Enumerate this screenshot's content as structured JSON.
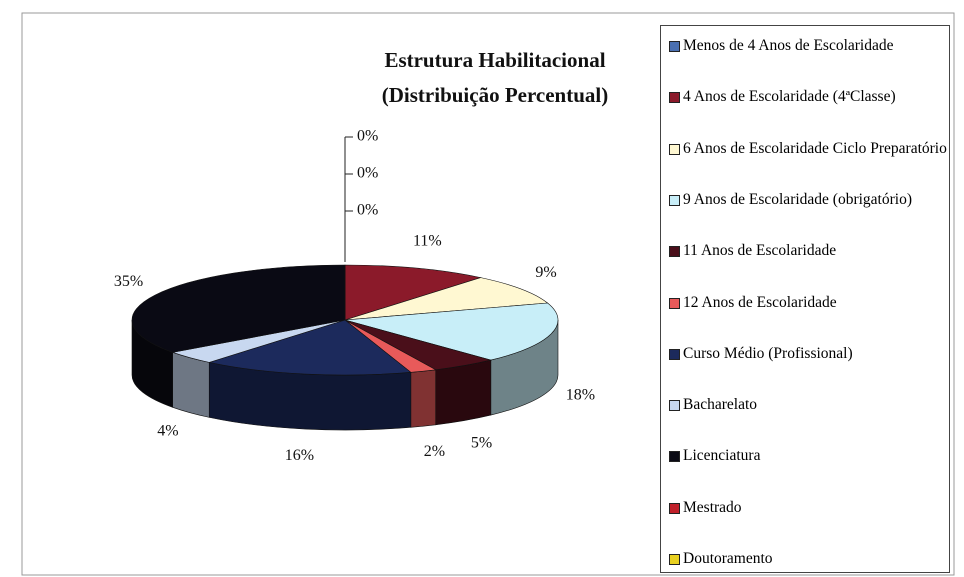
{
  "chart_data": {
    "type": "pie3d",
    "title": [
      "Estrutura Habilitacional",
      "(Distribuição Percentual)"
    ],
    "categories": [
      "Menos de 4 Anos de Escolaridade",
      "4 Anos de Escolaridade (4ªClasse)",
      "6 Anos de Escolaridade Ciclo Preparatório",
      "9 Anos de Escolaridade (obrigatório)",
      "11 Anos de Escolaridade",
      "12 Anos de Escolaridade",
      "Curso Médio (Profissional)",
      "Bacharelato",
      "Licenciatura",
      "Mestrado",
      "Doutoramento"
    ],
    "values": [
      0,
      11,
      9,
      18,
      5,
      2,
      16,
      4,
      35,
      0,
      0
    ],
    "value_labels": [
      "0%",
      "11%",
      "9%",
      "18%",
      "5%",
      "2%",
      "16%",
      "4%",
      "35%",
      "0%",
      "0%"
    ],
    "colors": [
      "#4a6fb0",
      "#8b1a2a",
      "#fff8d2",
      "#c8eef8",
      "#4a0f1a",
      "#e85a5a",
      "#1c2a5c",
      "#c8d8f0",
      "#0a0a14",
      "#c0202a",
      "#e8d020"
    ],
    "legend": "right"
  }
}
